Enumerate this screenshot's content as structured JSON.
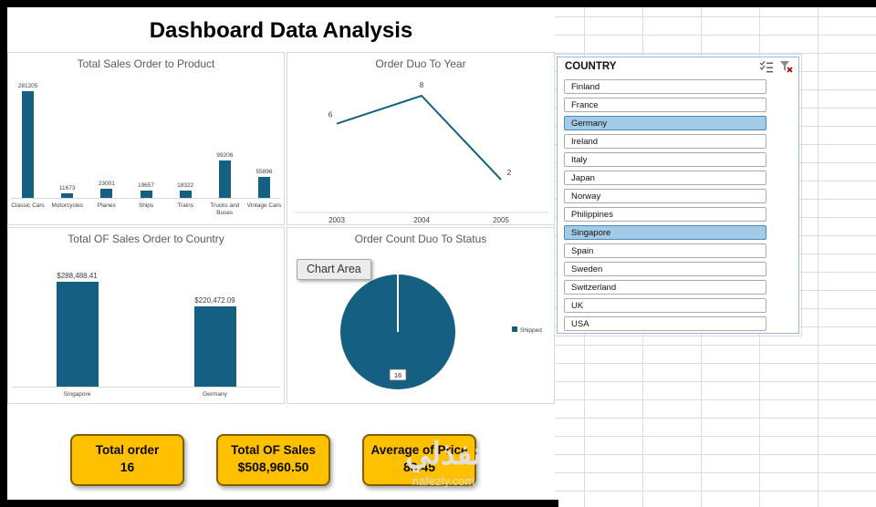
{
  "title": "Dashboard Data Analysis",
  "chart_data": [
    {
      "type": "bar",
      "title": "Total Sales Order to Product",
      "categories": [
        "Classic Cars",
        "Motorcycles",
        "Planes",
        "Ships",
        "Trains",
        "Trucks and Buses",
        "Vintage Cars"
      ],
      "values": [
        281205,
        11673,
        23001,
        19657,
        18322,
        99206,
        55896
      ],
      "value_labels": [
        "281205",
        "11673",
        "23001",
        "19657",
        "18322",
        "99206",
        "55896"
      ],
      "ylim": [
        0,
        300000
      ],
      "grid": false,
      "bar_color": "#156082"
    },
    {
      "type": "line",
      "title": "Order Duo To Year",
      "x": [
        "2003",
        "2004",
        "2005"
      ],
      "values": [
        6,
        8,
        2
      ],
      "value_labels": [
        "6",
        "8",
        "2"
      ],
      "ylim": [
        0,
        10
      ],
      "grid": false,
      "line_color": "#156082"
    },
    {
      "type": "bar",
      "title": "Total OF Sales Order to Country",
      "categories": [
        "Singapore",
        "Germany"
      ],
      "values": [
        288488.41,
        220472.09
      ],
      "value_labels": [
        "$288,488.41",
        "$220,472.09"
      ],
      "ylim": [
        0,
        300000
      ],
      "grid": false,
      "bar_color": "#156082"
    },
    {
      "type": "pie",
      "title": "Order Count Duo To Status",
      "slices": [
        {
          "label": "Shipped",
          "value": 16
        }
      ],
      "data_label": "16",
      "legend": [
        "Shipped"
      ],
      "legend_position": "right",
      "pie_color": "#156082"
    }
  ],
  "tooltip": {
    "label": "Chart Area"
  },
  "slicer": {
    "header": "COUNTRY",
    "icons": [
      "multiselect-icon",
      "clear-filter-icon"
    ],
    "items": [
      {
        "label": "Finland",
        "selected": false
      },
      {
        "label": "France",
        "selected": false
      },
      {
        "label": "Germany",
        "selected": true
      },
      {
        "label": "Ireland",
        "selected": false
      },
      {
        "label": "Italy",
        "selected": false
      },
      {
        "label": "Japan",
        "selected": false
      },
      {
        "label": "Norway",
        "selected": false
      },
      {
        "label": "Philippines",
        "selected": false
      },
      {
        "label": "Singapore",
        "selected": true
      },
      {
        "label": "Spain",
        "selected": false
      },
      {
        "label": "Sweden",
        "selected": false
      },
      {
        "label": "Switzerland",
        "selected": false
      },
      {
        "label": "UK",
        "selected": false
      },
      {
        "label": "USA",
        "selected": false
      }
    ]
  },
  "kpis": [
    {
      "line1": "Total order",
      "line2": "16"
    },
    {
      "line1": "Total OF Sales",
      "line2": "$508,960.50"
    },
    {
      "line1": "Average of Price",
      "line2": "83.45"
    }
  ],
  "watermark": {
    "arabic": "نفذلي",
    "site": "nafezly.com"
  },
  "colors": {
    "accent": "#156082",
    "kpi_fill": "#FFC000",
    "slicer_selected": "#a3cbe8"
  }
}
